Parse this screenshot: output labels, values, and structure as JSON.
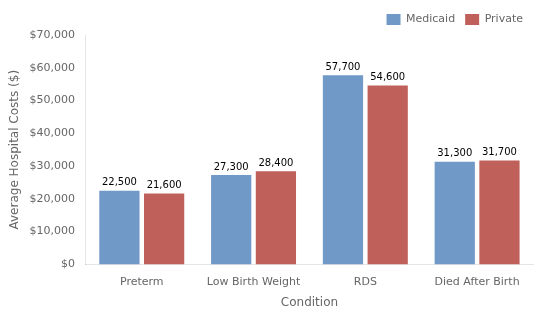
{
  "chart_data": {
    "type": "bar",
    "xlabel": "Condition",
    "ylabel": "Average Hospital Costs ($)",
    "categories": [
      "Preterm",
      "Low Birth Weight",
      "RDS",
      "Died After Birth"
    ],
    "series": [
      {
        "name": "Medicaid",
        "color": "#7099C8",
        "values": [
          22500,
          27300,
          57700,
          31300
        ],
        "value_labels": [
          "22,500",
          "27,300",
          "57,700",
          "31,300"
        ]
      },
      {
        "name": "Private",
        "color": "#C0605A",
        "values": [
          21600,
          28400,
          54600,
          31700
        ],
        "value_labels": [
          "21,600",
          "28,400",
          "54,600",
          "31,700"
        ]
      }
    ],
    "ylim": [
      0,
      70000
    ],
    "yticks": [
      {
        "value": 0,
        "label": "$0"
      },
      {
        "value": 10000,
        "label": "$10,000"
      },
      {
        "value": 20000,
        "label": "$20,000"
      },
      {
        "value": 30000,
        "label": "$30,000"
      },
      {
        "value": 40000,
        "label": "$40,000"
      },
      {
        "value": 50000,
        "label": "$50,000"
      },
      {
        "value": 60000,
        "label": "$60,000"
      },
      {
        "value": 70000,
        "label": "$70,000"
      }
    ],
    "grid": false,
    "legend": "upper right",
    "data_labels": true
  }
}
